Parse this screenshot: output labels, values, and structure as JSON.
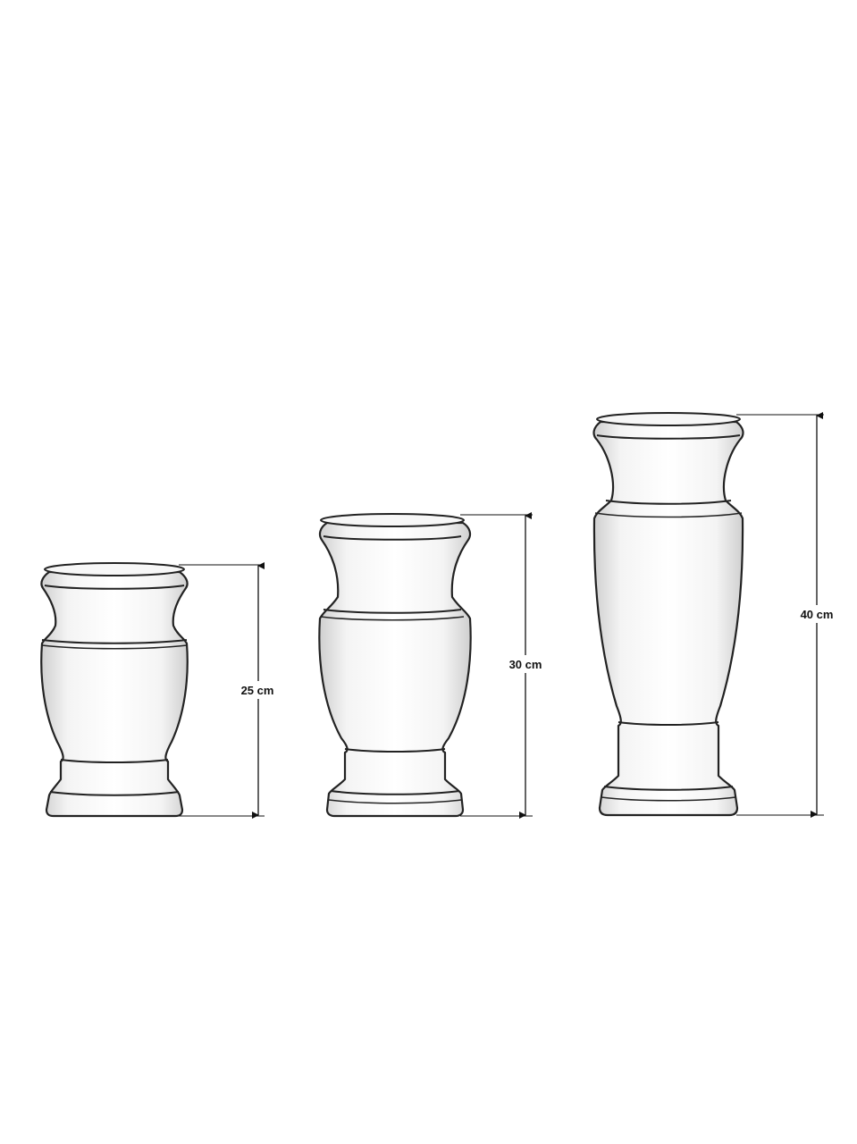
{
  "vases": [
    {
      "id": "small",
      "height_label": "25 cm",
      "height_cm": 25
    },
    {
      "id": "medium",
      "height_label": "30 cm",
      "height_cm": 30
    },
    {
      "id": "large",
      "height_label": "40 cm",
      "height_cm": 40
    }
  ],
  "colors": {
    "outline": "#222222",
    "fill_light": "#ffffff",
    "fill_shade": "#d9d9d9",
    "dimension_line": "#111111"
  }
}
